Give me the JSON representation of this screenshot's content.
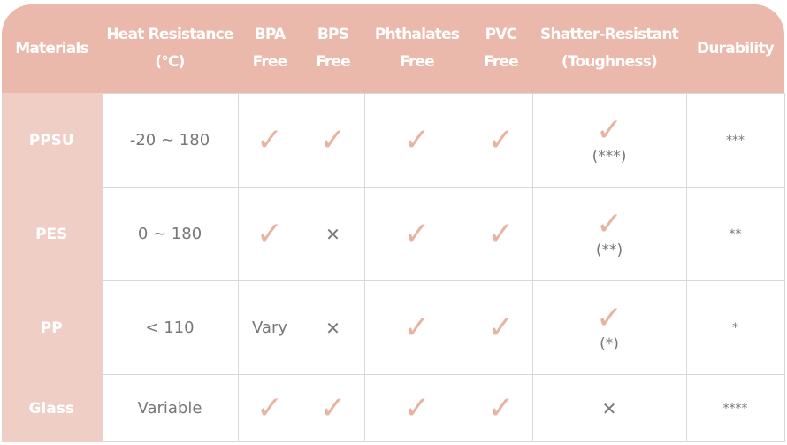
{
  "headers": [
    "Materials",
    "Heat Resistance (°C)",
    "BPA Free",
    "BPS Free",
    "Phthalates Free",
    "PVC Free",
    "Shatter-Resistant (Toughness)",
    "Durability"
  ],
  "rows": [
    {
      "material": "PPSU",
      "heat": "-20 ~ 180",
      "bpa": "check",
      "bps": "check",
      "phth": "check",
      "pvc": "check",
      "shatter": "check",
      "shatter_note": "(***)",
      "durability": "***"
    },
    {
      "material": "PES",
      "heat": "0 ~ 180",
      "bpa": "check",
      "bps": "cross",
      "phth": "check",
      "pvc": "check",
      "shatter": "check",
      "shatter_note": "(**)",
      "durability": "**"
    },
    {
      "material": "PP",
      "heat": "< 110",
      "bpa": "Vary",
      "bps": "cross",
      "phth": "check",
      "pvc": "check",
      "shatter": "check",
      "shatter_note": "(*)",
      "durability": "*"
    },
    {
      "material": "Glass",
      "heat": "Variable",
      "bpa": "check",
      "bps": "check",
      "phth": "check",
      "pvc": "check",
      "shatter": "cross",
      "shatter_note": "",
      "durability": "****"
    }
  ],
  "colors": {
    "header": "#ebb9ab",
    "material_col": "#efcec6",
    "check": "#e9b3a2"
  },
  "icons": {
    "check": "checkmark-icon",
    "cross": "cross-icon"
  }
}
